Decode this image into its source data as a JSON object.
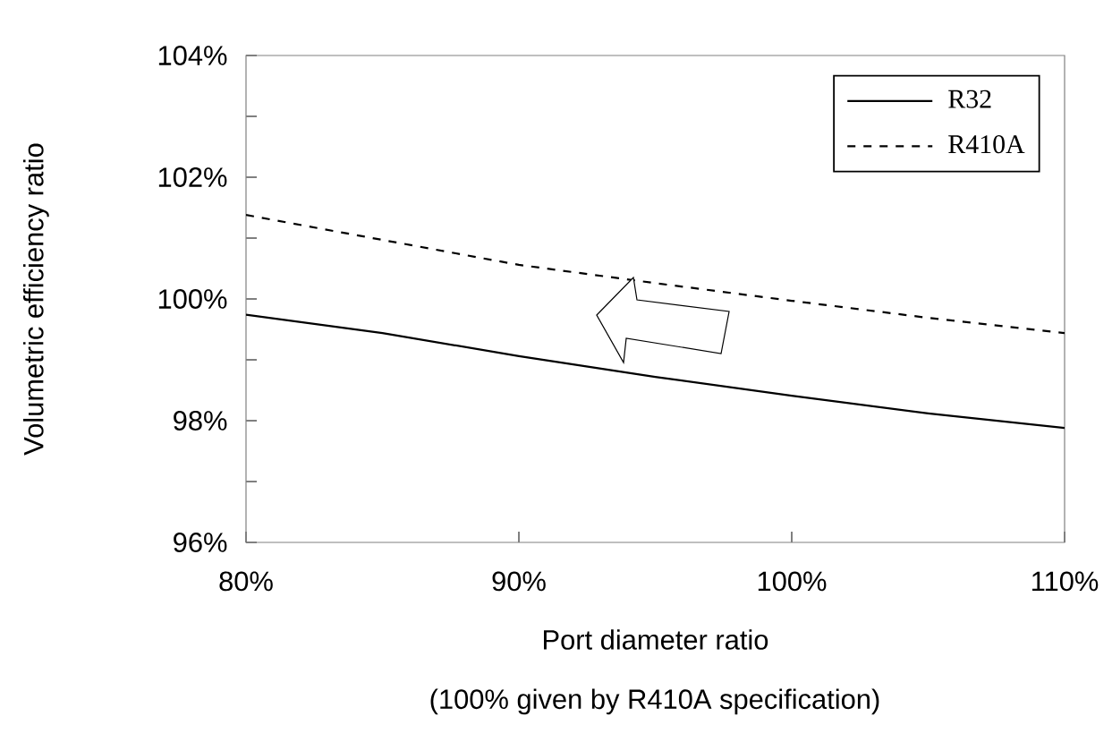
{
  "chart_data": {
    "type": "line",
    "xlabel": "Port diameter ratio",
    "ylabel": "Volumetric efficiency ratio",
    "annotations": [
      "(100% given by R410A specification)"
    ],
    "xlim": [
      80,
      110
    ],
    "ylim": [
      96,
      104
    ],
    "xticks": [
      {
        "value": 80,
        "label": "80%"
      },
      {
        "value": 90,
        "label": "90%"
      },
      {
        "value": 100,
        "label": "100%"
      },
      {
        "value": 110,
        "label": "110%"
      }
    ],
    "yticks": [
      {
        "value": 96,
        "label": "96%"
      },
      {
        "value": 98,
        "label": "98%"
      },
      {
        "value": 100,
        "label": "100%"
      },
      {
        "value": 102,
        "label": "102%"
      },
      {
        "value": 104,
        "label": "104%"
      }
    ],
    "legend": "top right",
    "grid": false,
    "marker": "none",
    "series": [
      {
        "name": "R32",
        "color": "#000000",
        "line_style": "solid",
        "x": [
          80,
          85,
          90,
          95,
          100,
          105,
          110
        ],
        "values": [
          99.74,
          99.44,
          99.06,
          98.72,
          98.41,
          98.12,
          97.88
        ]
      },
      {
        "name": "R410A",
        "color": "#000000",
        "line_style": "dashed",
        "x": [
          80,
          85,
          90,
          95,
          100,
          105,
          110
        ],
        "values": [
          101.38,
          100.97,
          100.56,
          100.26,
          99.97,
          99.69,
          99.44
        ]
      }
    ]
  }
}
